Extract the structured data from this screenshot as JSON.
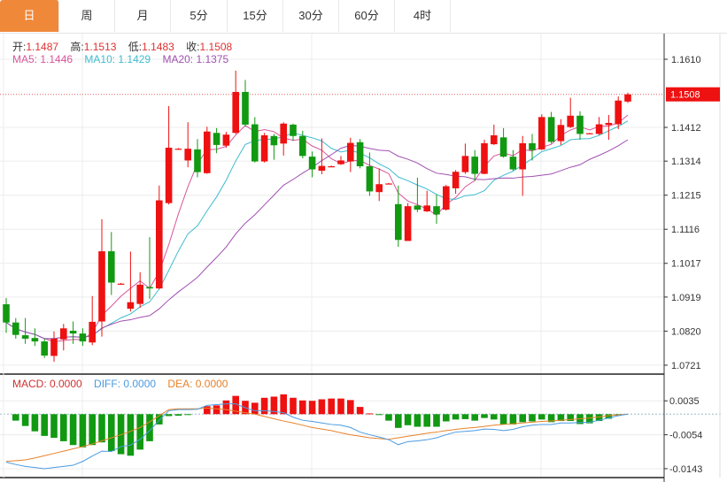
{
  "tabs": [
    "日",
    "周",
    "月",
    "5分",
    "15分",
    "30分",
    "60分",
    "4时"
  ],
  "active_tab": 0,
  "ohlc_legend": {
    "open_label": "开:",
    "open": "1.1487",
    "high_label": "高:",
    "high": "1.1513",
    "low_label": "低:",
    "low": "1.1483",
    "close_label": "收:",
    "close": "1.1508"
  },
  "ma_legend": {
    "ma5": "MA5: 1.1446",
    "ma10": "MA10: 1.1429",
    "ma20": "MA20: 1.1375"
  },
  "macd_legend": {
    "macd": "MACD: 0.0000",
    "diff": "DIFF: 0.0000",
    "dea": "DEA: 0.0000"
  },
  "colors": {
    "up": "#ee1111",
    "down": "#119911",
    "ma5": "#d9559b",
    "ma10": "#3fbcd0",
    "ma20": "#a050b0",
    "diff": "#4a9be0",
    "dea": "#e8822a",
    "accent": "#f0883a"
  },
  "chart_data": [
    {
      "type": "candlestick",
      "price_axis_ticks": [
        "1.1610",
        "1.1508",
        "1.1412",
        "1.1314",
        "1.1215",
        "1.1116",
        "1.1017",
        "1.0919",
        "1.0820",
        "1.0721"
      ],
      "ylim": [
        1.0721,
        1.161
      ],
      "last_price": "1.1508",
      "grid": true,
      "ohlc": [
        [
          1.0898,
          1.0916,
          1.0815,
          1.0845
        ],
        [
          1.0845,
          1.0858,
          1.0798,
          1.0809
        ],
        [
          1.0808,
          1.0858,
          1.0783,
          1.0798
        ],
        [
          1.08,
          1.0828,
          1.0777,
          1.079
        ],
        [
          1.079,
          1.0798,
          1.0742,
          1.0749
        ],
        [
          1.0748,
          1.0819,
          1.0731,
          1.0798
        ],
        [
          1.0796,
          1.0841,
          1.0764,
          1.0828
        ],
        [
          1.0821,
          1.0848,
          1.0783,
          1.0813
        ],
        [
          1.0813,
          1.0828,
          1.0777,
          1.079
        ],
        [
          1.0787,
          1.0922,
          1.0779,
          1.0847
        ],
        [
          1.0848,
          1.1145,
          1.0804,
          1.1052
        ],
        [
          1.1052,
          1.1108,
          1.0925,
          1.0961
        ],
        [
          1.0958,
          1.096,
          1.0955,
          1.0958
        ],
        [
          1.0885,
          1.1051,
          1.0877,
          1.0904
        ],
        [
          1.0899,
          1.0991,
          1.0888,
          1.0955
        ],
        [
          1.0948,
          1.1093,
          1.0914,
          1.0944
        ],
        [
          1.0944,
          1.1243,
          1.0942,
          1.12
        ],
        [
          1.1192,
          1.1474,
          1.1188,
          1.1353
        ],
        [
          1.135,
          1.1352,
          1.1347,
          1.135
        ],
        [
          1.1316,
          1.1427,
          1.1296,
          1.135
        ],
        [
          1.1348,
          1.1378,
          1.1267,
          1.1282
        ],
        [
          1.1279,
          1.1414,
          1.1277,
          1.14
        ],
        [
          1.1396,
          1.141,
          1.1337,
          1.1361
        ],
        [
          1.1359,
          1.1399,
          1.1353,
          1.1391
        ],
        [
          1.1396,
          1.1577,
          1.1393,
          1.1515
        ],
        [
          1.1515,
          1.155,
          1.1414,
          1.142
        ],
        [
          1.1421,
          1.1442,
          1.131,
          1.1313
        ],
        [
          1.1313,
          1.1396,
          1.131,
          1.1389
        ],
        [
          1.1387,
          1.1393,
          1.1318,
          1.136
        ],
        [
          1.1365,
          1.1427,
          1.133,
          1.1423
        ],
        [
          1.142,
          1.1423,
          1.1373,
          1.1387
        ],
        [
          1.1387,
          1.1402,
          1.1322,
          1.1329
        ],
        [
          1.1327,
          1.1342,
          1.1267,
          1.129
        ],
        [
          1.1286,
          1.138,
          1.1276,
          1.13
        ],
        [
          1.1299,
          1.1301,
          1.1297,
          1.1299
        ],
        [
          1.1305,
          1.1329,
          1.1303,
          1.1316
        ],
        [
          1.1313,
          1.1382,
          1.1282,
          1.1367
        ],
        [
          1.1369,
          1.1378,
          1.1293,
          1.1299
        ],
        [
          1.1299,
          1.1339,
          1.1213,
          1.1226
        ],
        [
          1.1224,
          1.1293,
          1.1198,
          1.1247
        ],
        [
          1.1249,
          1.1251,
          1.1247,
          1.1249
        ],
        [
          1.1189,
          1.1243,
          1.1065,
          1.1085
        ],
        [
          1.1082,
          1.1192,
          1.1082,
          1.1183
        ],
        [
          1.1185,
          1.1266,
          1.1166,
          1.1173
        ],
        [
          1.1168,
          1.1228,
          1.1166,
          1.1185
        ],
        [
          1.1183,
          1.1217,
          1.1132,
          1.1159
        ],
        [
          1.1173,
          1.1245,
          1.117,
          1.1241
        ],
        [
          1.1235,
          1.1288,
          1.1219,
          1.1283
        ],
        [
          1.1282,
          1.1365,
          1.1277,
          1.1329
        ],
        [
          1.1327,
          1.1346,
          1.1256,
          1.1277
        ],
        [
          1.1277,
          1.1376,
          1.1276,
          1.1366
        ],
        [
          1.1363,
          1.142,
          1.1361,
          1.1389
        ],
        [
          1.1383,
          1.141,
          1.1324,
          1.1327
        ],
        [
          1.1327,
          1.1346,
          1.1286,
          1.129
        ],
        [
          1.129,
          1.1387,
          1.1213,
          1.1366
        ],
        [
          1.1366,
          1.1393,
          1.1316,
          1.1346
        ],
        [
          1.1348,
          1.145,
          1.1346,
          1.1442
        ],
        [
          1.1442,
          1.1457,
          1.1365,
          1.137
        ],
        [
          1.1372,
          1.1436,
          1.1361,
          1.1419
        ],
        [
          1.1413,
          1.1498,
          1.141,
          1.1446
        ],
        [
          1.1446,
          1.1459,
          1.1376,
          1.1393
        ],
        [
          1.1394,
          1.1396,
          1.1393,
          1.1395
        ],
        [
          1.1393,
          1.1442,
          1.139,
          1.1421
        ],
        [
          1.1419,
          1.1448,
          1.1376,
          1.1425
        ],
        [
          1.1421,
          1.1502,
          1.1407,
          1.149
        ],
        [
          1.1487,
          1.1513,
          1.1483,
          1.1508
        ]
      ]
    },
    {
      "type": "bar",
      "macd_axis_ticks": [
        "0.0035",
        "-0.0054",
        "-0.0143"
      ],
      "ylim": [
        -0.0155,
        0.006
      ],
      "macd": [
        0,
        -0.0017,
        -0.0031,
        -0.0045,
        -0.0057,
        -0.0062,
        -0.0071,
        -0.0081,
        -0.0087,
        -0.0081,
        -0.0074,
        -0.0097,
        -0.0105,
        -0.0109,
        -0.0093,
        -0.0071,
        -0.0027,
        -0.0005,
        -0.0004,
        -0.0002,
        0,
        0.0021,
        0.0023,
        0.0036,
        0.0048,
        0.0035,
        0.003,
        0.0043,
        0.0046,
        0.0052,
        0.0043,
        0.0036,
        0.0035,
        0.0039,
        0.0041,
        0.0041,
        0.0037,
        0.0019,
        0.0002,
        -0.0001,
        -0.0017,
        -0.0036,
        -0.0029,
        -0.0033,
        -0.0033,
        -0.0033,
        -0.0019,
        -0.0014,
        -0.0013,
        -0.0017,
        -0.001,
        -0.0014,
        -0.0027,
        -0.0027,
        -0.0021,
        -0.0019,
        -0.0014,
        -0.0021,
        -0.0018,
        -0.0018,
        -0.0026,
        -0.0024,
        -0.0018,
        -0.0012,
        -0.0004,
        0
      ],
      "diff": [
        -0.0126,
        -0.0132,
        -0.0137,
        -0.014,
        -0.0143,
        -0.014,
        -0.0137,
        -0.0134,
        -0.0124,
        -0.011,
        -0.0097,
        -0.0098,
        -0.0085,
        -0.0081,
        -0.0066,
        -0.0043,
        -0.0016,
        0.0009,
        0.0012,
        0.0012,
        0.0013,
        0.0023,
        0.0025,
        0.0027,
        0.0027,
        0.0017,
        0.0009,
        0.0009,
        0.0007,
        0.0004,
        -0.0008,
        -0.0016,
        -0.0019,
        -0.0023,
        -0.0027,
        -0.0029,
        -0.0035,
        -0.0047,
        -0.0054,
        -0.006,
        -0.0067,
        -0.008,
        -0.0072,
        -0.007,
        -0.0067,
        -0.0062,
        -0.0054,
        -0.0047,
        -0.0045,
        -0.0043,
        -0.0039,
        -0.004,
        -0.0043,
        -0.004,
        -0.0033,
        -0.0029,
        -0.0027,
        -0.0027,
        -0.0023,
        -0.0023,
        -0.0022,
        -0.0021,
        -0.0016,
        -0.001,
        -0.0004,
        0
      ],
      "dea": [
        -0.0124,
        -0.0122,
        -0.012,
        -0.0115,
        -0.0109,
        -0.0103,
        -0.0097,
        -0.0091,
        -0.0085,
        -0.0078,
        -0.007,
        -0.0062,
        -0.0054,
        -0.0045,
        -0.0035,
        -0.002,
        -0.0004,
        0.0012,
        0.0014,
        0.0014,
        0.0014,
        0.0016,
        0.0014,
        0.0012,
        0.0008,
        0.0004,
        0,
        -0.0006,
        -0.0012,
        -0.0018,
        -0.0023,
        -0.0029,
        -0.0035,
        -0.0039,
        -0.0043,
        -0.0049,
        -0.0054,
        -0.0058,
        -0.0062,
        -0.0064,
        -0.0066,
        -0.0062,
        -0.0058,
        -0.0054,
        -0.005,
        -0.0047,
        -0.0043,
        -0.004,
        -0.0037,
        -0.0035,
        -0.0032,
        -0.0029,
        -0.0027,
        -0.0025,
        -0.0023,
        -0.0021,
        -0.0019,
        -0.0018,
        -0.0016,
        -0.0014,
        -0.0012,
        -0.001,
        -0.0007,
        -0.0004,
        -0.0002,
        0
      ]
    }
  ]
}
